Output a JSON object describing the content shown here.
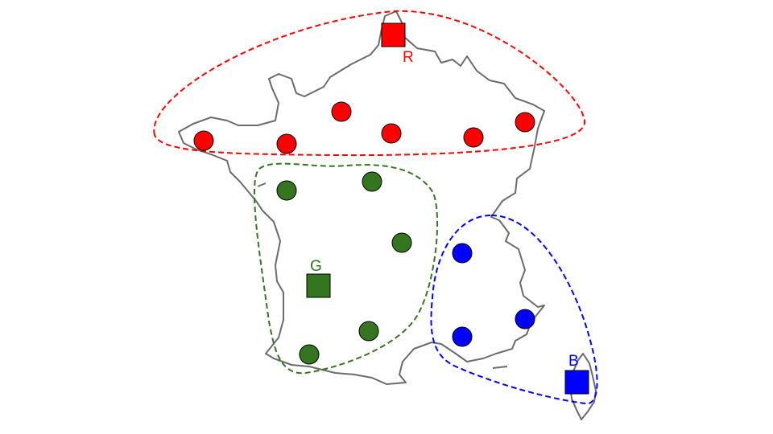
{
  "clusters": {
    "red": {
      "label": "R",
      "color": "#ff0000",
      "point_count": 7
    },
    "green": {
      "label": "G",
      "color": "#347520",
      "point_count": 6
    },
    "blue": {
      "label": "B",
      "color": "#0000ff",
      "point_count": 4
    }
  },
  "map_color": "#6b6b6b"
}
